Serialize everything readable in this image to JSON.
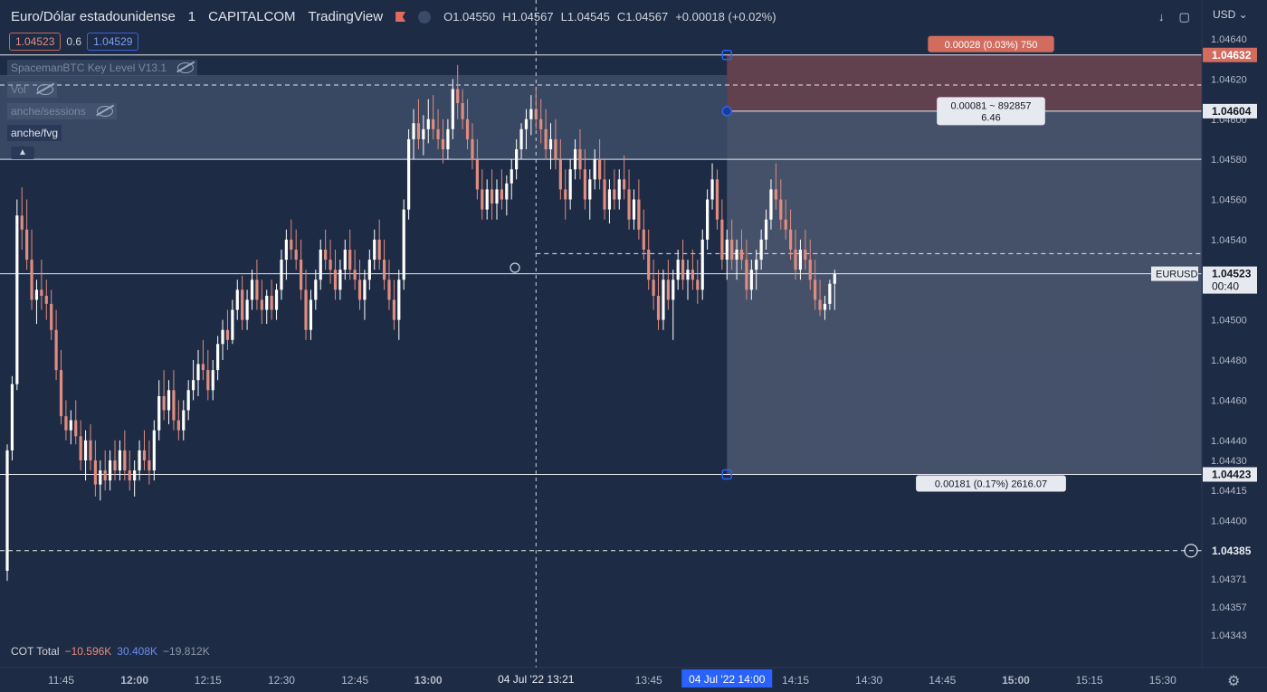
{
  "header": {
    "symbol": "Euro/Dólar estadounidense",
    "interval": "1",
    "exchange": "CAPITALCOM",
    "source": "TradingView",
    "open": "O1.04550",
    "high": "H1.04567",
    "low": "L1.04545",
    "close": "C1.04567",
    "change": "+0.00018 (+0.02%)"
  },
  "prices": {
    "bid": "1.04523",
    "spread": "0.6",
    "ask": "1.04529"
  },
  "indicators": [
    "SpacemanBTC Key Level V13.1",
    "Vol",
    "anche/sessions",
    "anche/fvg"
  ],
  "currency": "USD",
  "cot": {
    "label": "COT Total",
    "v1": "−10.596K",
    "v2": "30.408K",
    "v3": "−19.812K"
  },
  "colors": {
    "bg": "#1e2b45",
    "up": "#ffffff",
    "down": "#e08c7e",
    "grid": "#2b3a57",
    "accent": "#2962ff"
  },
  "chart_data": {
    "type": "candlestick",
    "symbol": "EURUSD",
    "ylim": [
      1.04343,
      1.0464
    ],
    "y_ticks": [
      "1.04640",
      "1.04620",
      "1.04600",
      "1.04580",
      "1.04560",
      "1.04540",
      "1.04520",
      "1.04500",
      "1.04480",
      "1.04460",
      "1.04440",
      "1.04430",
      "1.04415",
      "1.04400",
      "1.04371",
      "1.04357",
      "1.04343"
    ],
    "x_ticks": [
      {
        "label": "30",
        "t": -3
      },
      {
        "label": "11:45",
        "t": 11
      },
      {
        "label": "12:00",
        "t": 26
      },
      {
        "label": "12:15",
        "t": 41
      },
      {
        "label": "12:30",
        "t": 56
      },
      {
        "label": "12:45",
        "t": 71
      },
      {
        "label": "13:00",
        "t": 86
      },
      {
        "label": "13:45",
        "t": 131
      },
      {
        "label": "14:15",
        "t": 161
      },
      {
        "label": "14:30",
        "t": 176
      },
      {
        "label": "14:45",
        "t": 191
      },
      {
        "label": "15:00",
        "t": 206
      },
      {
        "label": "15:15",
        "t": 221
      },
      {
        "label": "15:30",
        "t": 236
      }
    ],
    "x_start": "11:33",
    "crosshair_label": "04 Jul '22  13:21",
    "crosshair_t": 108,
    "highlight_label": "04 Jul '22  14:00",
    "highlight_t": 147,
    "tags": {
      "top": "1.04632",
      "entry": "1.04604",
      "symbol": "EURUSD",
      "last": "1.04523",
      "countdown": "00:40",
      "stop": "1.04423",
      "cursor": "1.04385"
    },
    "hlines": [
      {
        "y": 1.04632,
        "style": "solid"
      },
      {
        "y": 1.0458,
        "style": "solid"
      },
      {
        "y": 1.04423,
        "style": "solid"
      },
      {
        "y": 1.04385,
        "style": "dashed"
      },
      {
        "y": 1.04533,
        "style": "dashed"
      }
    ],
    "position": {
      "type": "short",
      "entry": 1.04604,
      "target": 1.04423,
      "stop": 1.04632,
      "start_t": 147,
      "target_label": "0.00181 (0.17%) 2616.07",
      "stop_label": "0.00028 (0.03%) 750",
      "entry_label_1": "0.00081 ~ 892857",
      "entry_label_2": "6.46"
    },
    "fvg_zone": [
      1.0458,
      1.04622
    ],
    "ohlc": [
      [
        1.04375,
        1.04438,
        1.0437,
        1.04435
      ],
      [
        1.04435,
        1.04472,
        1.0443,
        1.04468
      ],
      [
        1.04468,
        1.0456,
        1.04465,
        1.04552
      ],
      [
        1.04552,
        1.04566,
        1.04535,
        1.04545
      ],
      [
        1.04545,
        1.0456,
        1.04525,
        1.0453
      ],
      [
        1.0453,
        1.04545,
        1.04505,
        1.0451
      ],
      [
        1.0451,
        1.0452,
        1.04498,
        1.04515
      ],
      [
        1.04515,
        1.0453,
        1.04505,
        1.04512
      ],
      [
        1.04512,
        1.0452,
        1.045,
        1.04508
      ],
      [
        1.04508,
        1.04515,
        1.0449,
        1.04495
      ],
      [
        1.04495,
        1.04505,
        1.0447,
        1.04475
      ],
      [
        1.04475,
        1.04485,
        1.04448,
        1.04452
      ],
      [
        1.04452,
        1.0446,
        1.0444,
        1.04445
      ],
      [
        1.04445,
        1.04455,
        1.04438,
        1.0445
      ],
      [
        1.0445,
        1.0446,
        1.04438,
        1.04442
      ],
      [
        1.04442,
        1.0445,
        1.04425,
        1.0443
      ],
      [
        1.0443,
        1.04445,
        1.0442,
        1.0444
      ],
      [
        1.0444,
        1.04448,
        1.04425,
        1.0443
      ],
      [
        1.0443,
        1.0444,
        1.04412,
        1.04418
      ],
      [
        1.04418,
        1.0443,
        1.0441,
        1.04425
      ],
      [
        1.04425,
        1.04435,
        1.04415,
        1.0442
      ],
      [
        1.0442,
        1.04435,
        1.04415,
        1.0443
      ],
      [
        1.0443,
        1.0444,
        1.0442,
        1.04425
      ],
      [
        1.04425,
        1.0444,
        1.0442,
        1.04435
      ],
      [
        1.04435,
        1.04445,
        1.0442,
        1.04425
      ],
      [
        1.04425,
        1.04435,
        1.04415,
        1.0442
      ],
      [
        1.0442,
        1.0443,
        1.04412,
        1.04425
      ],
      [
        1.04425,
        1.0444,
        1.0442,
        1.04435
      ],
      [
        1.04435,
        1.04445,
        1.04425,
        1.0443
      ],
      [
        1.0443,
        1.0444,
        1.04418,
        1.04425
      ],
      [
        1.04425,
        1.0445,
        1.0442,
        1.04445
      ],
      [
        1.04445,
        1.0447,
        1.0444,
        1.04462
      ],
      [
        1.04462,
        1.04475,
        1.0445,
        1.04455
      ],
      [
        1.04455,
        1.0447,
        1.04448,
        1.04465
      ],
      [
        1.04465,
        1.04475,
        1.04445,
        1.0445
      ],
      [
        1.0445,
        1.0446,
        1.0444,
        1.04445
      ],
      [
        1.04445,
        1.0446,
        1.0444,
        1.04455
      ],
      [
        1.04455,
        1.0447,
        1.0445,
        1.04465
      ],
      [
        1.04465,
        1.0448,
        1.0446,
        1.0447
      ],
      [
        1.0447,
        1.04485,
        1.04462,
        1.04478
      ],
      [
        1.04478,
        1.0449,
        1.0447,
        1.04475
      ],
      [
        1.04475,
        1.04485,
        1.0446,
        1.04465
      ],
      [
        1.04465,
        1.0448,
        1.0446,
        1.04475
      ],
      [
        1.04475,
        1.04492,
        1.0447,
        1.04488
      ],
      [
        1.04488,
        1.045,
        1.0448,
        1.04495
      ],
      [
        1.04495,
        1.04505,
        1.04485,
        1.0449
      ],
      [
        1.0449,
        1.0451,
        1.04488,
        1.04505
      ],
      [
        1.04505,
        1.0452,
        1.045,
        1.04515
      ],
      [
        1.04515,
        1.04522,
        1.04495,
        1.045
      ],
      [
        1.045,
        1.04515,
        1.04495,
        1.0451
      ],
      [
        1.0451,
        1.04525,
        1.04505,
        1.0452
      ],
      [
        1.0452,
        1.0453,
        1.04505,
        1.0451
      ],
      [
        1.0451,
        1.0452,
        1.04498,
        1.04505
      ],
      [
        1.04505,
        1.04515,
        1.04498,
        1.04512
      ],
      [
        1.04512,
        1.0452,
        1.045,
        1.04505
      ],
      [
        1.04505,
        1.04518,
        1.045,
        1.04515
      ],
      [
        1.04515,
        1.04535,
        1.0451,
        1.0453
      ],
      [
        1.0453,
        1.04545,
        1.0452,
        1.0454
      ],
      [
        1.0454,
        1.0455,
        1.0453,
        1.04535
      ],
      [
        1.04535,
        1.04545,
        1.04525,
        1.0453
      ],
      [
        1.0453,
        1.0454,
        1.0451,
        1.04515
      ],
      [
        1.04515,
        1.04525,
        1.0449,
        1.04495
      ],
      [
        1.04495,
        1.04515,
        1.0449,
        1.0451
      ],
      [
        1.0451,
        1.04525,
        1.04505,
        1.0452
      ],
      [
        1.0452,
        1.0454,
        1.04515,
        1.04535
      ],
      [
        1.04535,
        1.04545,
        1.04525,
        1.0453
      ],
      [
        1.0453,
        1.0454,
        1.04518,
        1.04525
      ],
      [
        1.04525,
        1.04535,
        1.0451,
        1.04515
      ],
      [
        1.04515,
        1.0453,
        1.0451,
        1.04525
      ],
      [
        1.04525,
        1.0454,
        1.0452,
        1.04535
      ],
      [
        1.04535,
        1.04545,
        1.0452,
        1.04525
      ],
      [
        1.04525,
        1.04535,
        1.04515,
        1.0452
      ],
      [
        1.0452,
        1.0453,
        1.04505,
        1.0451
      ],
      [
        1.0451,
        1.04525,
        1.045,
        1.0452
      ],
      [
        1.0452,
        1.04535,
        1.04515,
        1.0453
      ],
      [
        1.0453,
        1.04545,
        1.04525,
        1.0454
      ],
      [
        1.0454,
        1.0455,
        1.04525,
        1.0453
      ],
      [
        1.0453,
        1.0454,
        1.04515,
        1.0452
      ],
      [
        1.0452,
        1.0453,
        1.04505,
        1.0451
      ],
      [
        1.0451,
        1.0452,
        1.04495,
        1.045
      ],
      [
        1.045,
        1.04525,
        1.0449,
        1.0452
      ],
      [
        1.0452,
        1.0456,
        1.04515,
        1.04555
      ],
      [
        1.04555,
        1.04595,
        1.0455,
        1.0459
      ],
      [
        1.0459,
        1.04605,
        1.0458,
        1.04598
      ],
      [
        1.04598,
        1.0461,
        1.04585,
        1.0459
      ],
      [
        1.0459,
        1.04602,
        1.04582,
        1.04595
      ],
      [
        1.04595,
        1.0461,
        1.04588,
        1.046
      ],
      [
        1.046,
        1.04612,
        1.0459,
        1.04595
      ],
      [
        1.04595,
        1.04605,
        1.04585,
        1.0459
      ],
      [
        1.0459,
        1.046,
        1.04578,
        1.04585
      ],
      [
        1.04585,
        1.046,
        1.0458,
        1.04595
      ],
      [
        1.04595,
        1.0462,
        1.0459,
        1.04615
      ],
      [
        1.04615,
        1.04627,
        1.046,
        1.04608
      ],
      [
        1.04608,
        1.04615,
        1.04595,
        1.046
      ],
      [
        1.046,
        1.0461,
        1.04585,
        1.0459
      ],
      [
        1.0459,
        1.04598,
        1.04575,
        1.0458
      ],
      [
        1.0458,
        1.0459,
        1.0456,
        1.04565
      ],
      [
        1.04565,
        1.04575,
        1.0455,
        1.04555
      ],
      [
        1.04555,
        1.0457,
        1.0455,
        1.04565
      ],
      [
        1.04565,
        1.04575,
        1.0455,
        1.04558
      ],
      [
        1.04558,
        1.0457,
        1.0455,
        1.04565
      ],
      [
        1.04565,
        1.04575,
        1.04555,
        1.0456
      ],
      [
        1.0456,
        1.04572,
        1.04552,
        1.04568
      ],
      [
        1.04568,
        1.0458,
        1.0456,
        1.04575
      ],
      [
        1.04575,
        1.0459,
        1.0457,
        1.04585
      ],
      [
        1.04585,
        1.04598,
        1.0458,
        1.04595
      ],
      [
        1.04595,
        1.04605,
        1.04585,
        1.046
      ],
      [
        1.046,
        1.04612,
        1.04592,
        1.04605
      ],
      [
        1.04605,
        1.04615,
        1.04595,
        1.046
      ],
      [
        1.046,
        1.0461,
        1.04588,
        1.04595
      ],
      [
        1.04595,
        1.04605,
        1.0458,
        1.04585
      ],
      [
        1.04585,
        1.04598,
        1.04575,
        1.0459
      ],
      [
        1.0459,
        1.046,
        1.04575,
        1.0458
      ],
      [
        1.0458,
        1.0459,
        1.0456,
        1.04565
      ],
      [
        1.04565,
        1.04575,
        1.0455,
        1.0456
      ],
      [
        1.0456,
        1.0458,
        1.04555,
        1.04575
      ],
      [
        1.04575,
        1.0459,
        1.0457,
        1.04585
      ],
      [
        1.04585,
        1.04595,
        1.0457,
        1.04575
      ],
      [
        1.04575,
        1.04585,
        1.04555,
        1.0456
      ],
      [
        1.0456,
        1.04575,
        1.0455,
        1.0457
      ],
      [
        1.0457,
        1.04585,
        1.04565,
        1.0458
      ],
      [
        1.0458,
        1.0459,
        1.04565,
        1.0457
      ],
      [
        1.0457,
        1.0458,
        1.0455,
        1.04555
      ],
      [
        1.04555,
        1.0457,
        1.04548,
        1.04565
      ],
      [
        1.04565,
        1.04575,
        1.04555,
        1.0456
      ],
      [
        1.0456,
        1.04575,
        1.04555,
        1.0457
      ],
      [
        1.0457,
        1.04582,
        1.0456,
        1.04565
      ],
      [
        1.04565,
        1.04575,
        1.04545,
        1.0455
      ],
      [
        1.0455,
        1.04565,
        1.04545,
        1.0456
      ],
      [
        1.0456,
        1.0457,
        1.0454,
        1.04545
      ],
      [
        1.04545,
        1.04555,
        1.0453,
        1.04535
      ],
      [
        1.04535,
        1.04545,
        1.04515,
        1.0452
      ],
      [
        1.0452,
        1.0453,
        1.04505,
        1.04512
      ],
      [
        1.04512,
        1.04525,
        1.04495,
        1.045
      ],
      [
        1.045,
        1.04525,
        1.04495,
        1.0452
      ],
      [
        1.0452,
        1.0453,
        1.04505,
        1.0451
      ],
      [
        1.0451,
        1.04525,
        1.0449,
        1.0452
      ],
      [
        1.0452,
        1.04535,
        1.04515,
        1.0453
      ],
      [
        1.0453,
        1.0454,
        1.04515,
        1.0452
      ],
      [
        1.0452,
        1.0453,
        1.0451,
        1.04525
      ],
      [
        1.04525,
        1.04535,
        1.04515,
        1.0452
      ],
      [
        1.0452,
        1.0453,
        1.04508,
        1.04515
      ],
      [
        1.04515,
        1.04545,
        1.0451,
        1.0454
      ],
      [
        1.0454,
        1.04565,
        1.04535,
        1.0456
      ],
      [
        1.0456,
        1.04578,
        1.04555,
        1.0457
      ],
      [
        1.0457,
        1.04575,
        1.04545,
        1.0455
      ],
      [
        1.0455,
        1.0456,
        1.04525,
        1.0453
      ],
      [
        1.0453,
        1.04545,
        1.0452,
        1.0454
      ],
      [
        1.0454,
        1.0455,
        1.04525,
        1.0453
      ],
      [
        1.0453,
        1.0454,
        1.0452,
        1.04535
      ],
      [
        1.04535,
        1.04545,
        1.04525,
        1.0453
      ],
      [
        1.0453,
        1.0454,
        1.0451,
        1.04515
      ],
      [
        1.04515,
        1.0453,
        1.0451,
        1.04525
      ],
      [
        1.04525,
        1.04535,
        1.04515,
        1.0453
      ],
      [
        1.0453,
        1.04545,
        1.04525,
        1.0454
      ],
      [
        1.0454,
        1.04555,
        1.04535,
        1.0455
      ],
      [
        1.0455,
        1.0457,
        1.04545,
        1.04565
      ],
      [
        1.04565,
        1.04578,
        1.04555,
        1.0456
      ],
      [
        1.0456,
        1.0457,
        1.04545,
        1.0455
      ],
      [
        1.0455,
        1.0456,
        1.0454,
        1.04545
      ],
      [
        1.04545,
        1.04555,
        1.0453,
        1.04535
      ],
      [
        1.04535,
        1.04545,
        1.0452,
        1.04525
      ],
      [
        1.04525,
        1.0454,
        1.0452,
        1.04535
      ],
      [
        1.04535,
        1.04545,
        1.04525,
        1.0453
      ],
      [
        1.0453,
        1.0454,
        1.04515,
        1.0452
      ],
      [
        1.0452,
        1.0453,
        1.04505,
        1.0451
      ],
      [
        1.0451,
        1.0452,
        1.04502,
        1.04505
      ],
      [
        1.04505,
        1.04512,
        1.045,
        1.04508
      ],
      [
        1.04508,
        1.0452,
        1.04505,
        1.04518
      ],
      [
        1.04518,
        1.04525,
        1.04505,
        1.04523
      ]
    ]
  }
}
